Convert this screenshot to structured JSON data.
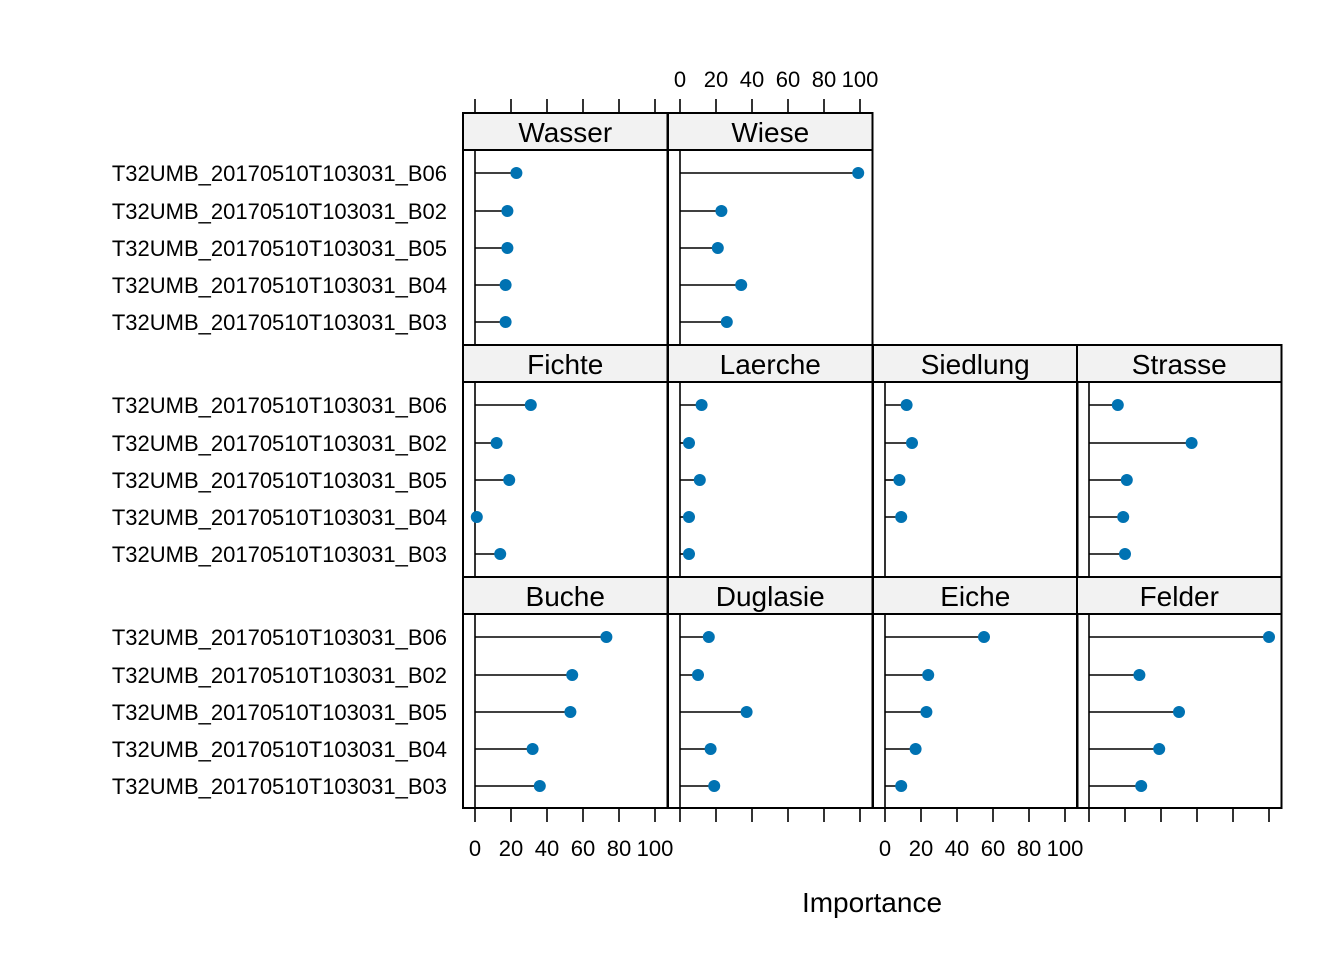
{
  "chart_data": {
    "type": "dotplot",
    "xlabel": "Importance",
    "xlim": [
      0,
      100
    ],
    "x_ticks": [
      0,
      20,
      40,
      60,
      80,
      100
    ],
    "grid": false,
    "colors": {
      "point": "#0072B2",
      "line": "#000000",
      "strip": "#F2F2F2"
    },
    "variables": [
      "T32UMB_20170510T103031_B06",
      "T32UMB_20170510T103031_B02",
      "T32UMB_20170510T103031_B05",
      "T32UMB_20170510T103031_B04",
      "T32UMB_20170510T103031_B03"
    ],
    "panels": [
      {
        "name": "Wasser",
        "values": [
          23,
          18,
          18,
          17,
          17
        ]
      },
      {
        "name": "Wiese",
        "values": [
          99,
          23,
          21,
          34,
          26
        ]
      },
      {
        "name": "Fichte",
        "values": [
          31,
          12,
          19,
          1,
          14
        ]
      },
      {
        "name": "Laerche",
        "values": [
          12,
          5,
          11,
          5,
          5
        ]
      },
      {
        "name": "Siedlung",
        "values": [
          12,
          15,
          8,
          9,
          null
        ]
      },
      {
        "name": "Strasse",
        "values": [
          16,
          57,
          21,
          19,
          20
        ]
      },
      {
        "name": "Buche",
        "values": [
          73,
          54,
          53,
          32,
          36
        ]
      },
      {
        "name": "Duglasie",
        "values": [
          16,
          10,
          37,
          17,
          19
        ]
      },
      {
        "name": "Eiche",
        "values": [
          55,
          24,
          23,
          17,
          9
        ]
      },
      {
        "name": "Felder",
        "values": [
          100,
          28,
          50,
          39,
          29
        ]
      }
    ]
  }
}
